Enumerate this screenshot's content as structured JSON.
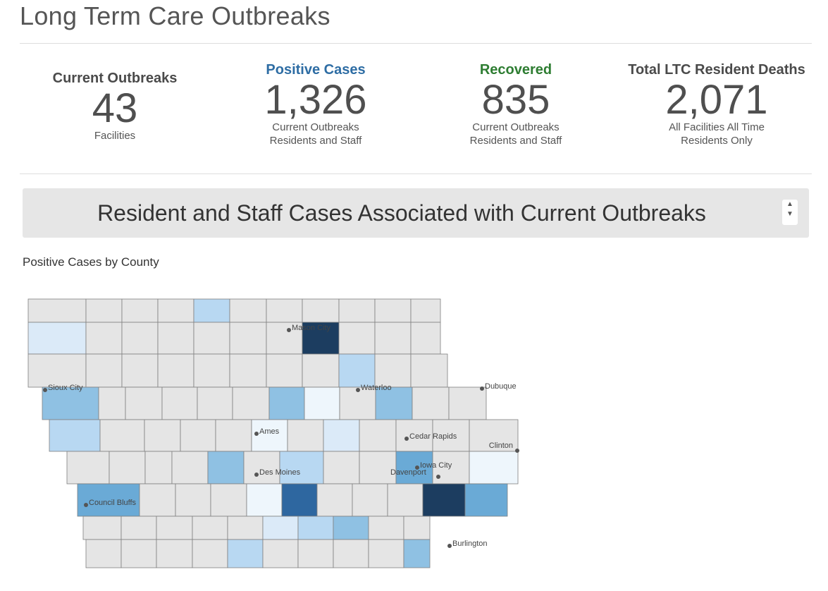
{
  "page": {
    "title": "Long Term Care Outbreaks"
  },
  "kpis": [
    {
      "title": "Current Outbreaks",
      "value": "43",
      "sub1": "Facilities",
      "sub2": "",
      "color": "#4a4a4a"
    },
    {
      "title": "Positive Cases",
      "value": "1,326",
      "sub1": "Current Outbreaks",
      "sub2": "Residents and Staff",
      "color": "#2e6da4"
    },
    {
      "title": "Recovered",
      "value": "835",
      "sub1": "Current Outbreaks",
      "sub2": "Residents and Staff",
      "color": "#2e7d32"
    },
    {
      "title": "Total LTC Resident Deaths",
      "value": "2,071",
      "sub1": "All Facilities All Time",
      "sub2": "Residents Only",
      "color": "#4a4a4a"
    }
  ],
  "banner": {
    "title": "Resident and Staff Cases Associated with Current Outbreaks",
    "scroll_up": "▲",
    "scroll_down": "▼"
  },
  "map": {
    "title": "Positive Cases by County",
    "colors": {
      "none": "#e5e5e5",
      "l1": "#eef6fc",
      "l2": "#dbeaf8",
      "l3": "#b8d8f2",
      "l4": "#8fc1e3",
      "l5": "#6aaad6",
      "l6": "#2e67a0",
      "l7": "#1c3d60",
      "border": "#808080"
    },
    "cities": [
      "Mason City",
      "Sioux City",
      "Waterloo",
      "Dubuque",
      "Ames",
      "Cedar Rapids",
      "Clinton",
      "Des Moines",
      "Iowa City",
      "Davenport",
      "Council Bluffs",
      "Burlington"
    ]
  }
}
